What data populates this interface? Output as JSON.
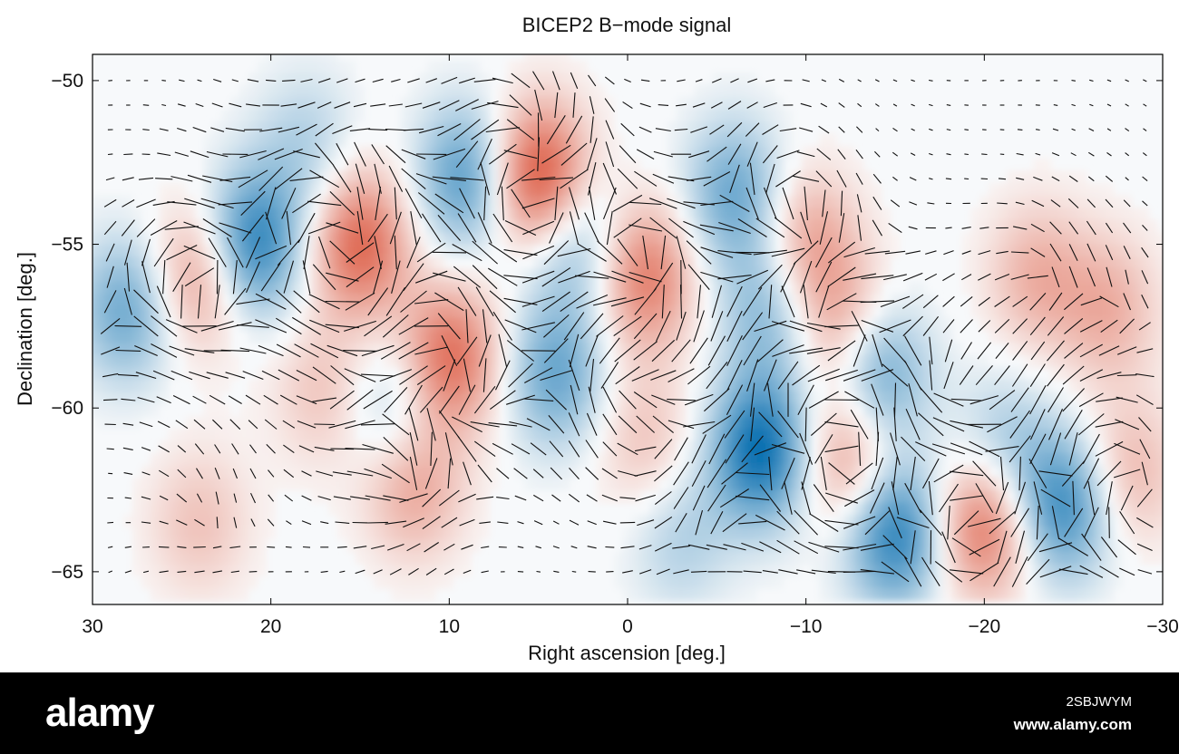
{
  "chart_data": {
    "type": "heatmap",
    "title": "BICEP2 B−mode signal",
    "xlabel": "Right ascension [deg.]",
    "ylabel": "Declination [deg.]",
    "xlim": [
      30,
      -30
    ],
    "ylim": [
      -66,
      -49.2
    ],
    "x_ticks": [
      30,
      20,
      10,
      0,
      -10,
      -20,
      -30
    ],
    "x_tick_labels": [
      "30",
      "20",
      "10",
      "0",
      "−10",
      "−20",
      "−30"
    ],
    "y_ticks": [
      -50,
      -55,
      -60,
      -65
    ],
    "y_tick_labels": [
      "−50",
      "−55",
      "−60",
      "−65"
    ],
    "colormap": [
      "#0a6fb0",
      "#ffffff",
      "#d8452a"
    ],
    "blobs": [
      {
        "ra": 21,
        "dec": -55,
        "value": -0.9
      },
      {
        "ra": 28,
        "dec": -57,
        "value": -0.6
      },
      {
        "ra": 5,
        "dec": -53,
        "value": 1.0
      },
      {
        "ra": 9,
        "dec": -53,
        "value": -0.7
      },
      {
        "ra": 15,
        "dec": -55,
        "value": 0.8
      },
      {
        "ra": 24,
        "dec": -56,
        "value": 0.6
      },
      {
        "ra": 3,
        "dec": -55,
        "value": -0.5
      },
      {
        "ra": -1,
        "dec": -56,
        "value": 0.7
      },
      {
        "ra": -6,
        "dec": -53.5,
        "value": -0.6
      },
      {
        "ra": -10,
        "dec": -55,
        "value": 0.5
      },
      {
        "ra": -8,
        "dec": -57,
        "value": -0.5
      },
      {
        "ra": -12,
        "dec": -57.5,
        "value": 0.5
      },
      {
        "ra": 10,
        "dec": -58.5,
        "value": 0.8
      },
      {
        "ra": 4,
        "dec": -59,
        "value": -0.6
      },
      {
        "ra": 13,
        "dec": -60,
        "value": -0.4
      },
      {
        "ra": -7.5,
        "dec": -61.3,
        "value": -1.0
      },
      {
        "ra": -12.5,
        "dec": -61.5,
        "value": 0.6
      },
      {
        "ra": -14,
        "dec": -59,
        "value": -0.7
      },
      {
        "ra": -15,
        "dec": -63.8,
        "value": -0.9
      },
      {
        "ra": -20,
        "dec": -63.5,
        "value": 0.8
      },
      {
        "ra": -24.5,
        "dec": -63,
        "value": -0.8
      },
      {
        "ra": -21,
        "dec": -61.3,
        "value": -0.4
      },
      {
        "ra": 12,
        "dec": -62.3,
        "value": 0.5
      },
      {
        "ra": -27,
        "dec": -57,
        "value": 0.4
      },
      {
        "ra": 17,
        "dec": -59.5,
        "value": 0.3
      },
      {
        "ra": -23,
        "dec": -56,
        "value": 0.4
      },
      {
        "ra": 24,
        "dec": -63.5,
        "value": 0.3
      },
      {
        "ra": -28,
        "dec": -62,
        "value": 0.4
      },
      {
        "ra": -1,
        "dec": -61,
        "value": 0.3
      },
      {
        "ra": 18,
        "dec": -52,
        "value": -0.3
      },
      {
        "ra": -3,
        "dec": -64,
        "value": -0.3
      }
    ],
    "polarization": {
      "ra_step": 1.0,
      "dec_step": 0.75,
      "ra_range": [
        29,
        -29
      ],
      "dec_range": [
        -50,
        -65.2
      ],
      "max_length_deg_ra": 1.9
    }
  },
  "watermark": {
    "logo": "alamy",
    "image_id": "2SBJWYM",
    "url": "www.alamy.com"
  }
}
